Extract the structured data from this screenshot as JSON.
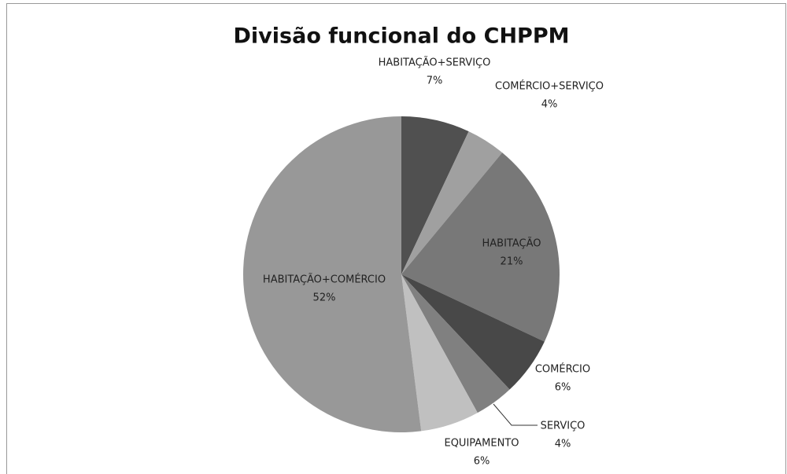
{
  "chart_data": {
    "type": "pie",
    "title": "Divisão funcional do CHPPM",
    "categories": [
      "HABITAÇÃO+SERVIÇO",
      "COMÉRCIO+SERVIÇO",
      "HABITAÇÃO",
      "COMÉRCIO",
      "SERVIÇO",
      "EQUIPAMENTO",
      "HABITAÇÃO+COMÉRCIO"
    ],
    "values": [
      7,
      4,
      21,
      6,
      4,
      6,
      52
    ],
    "value_labels": [
      "7%",
      "4%",
      "21%",
      "6%",
      "4%",
      "6%",
      "52%"
    ],
    "colors": [
      "#505050",
      "#a0a0a0",
      "#787878",
      "#484848",
      "#808080",
      "#c0c0c0",
      "#989898"
    ]
  }
}
